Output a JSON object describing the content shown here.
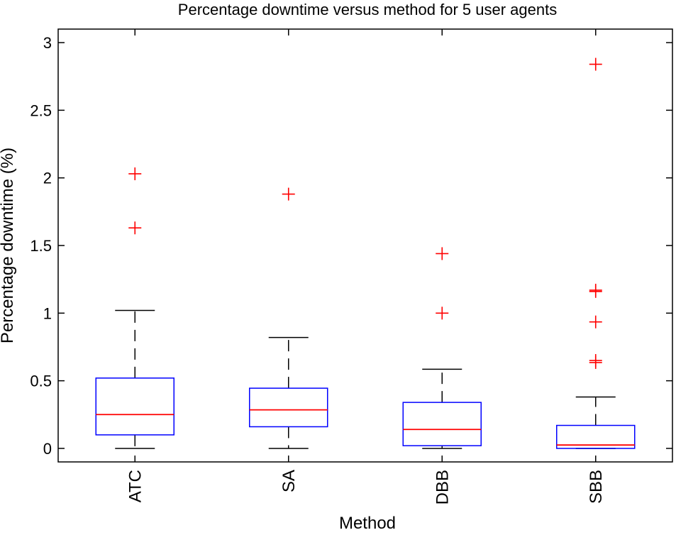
{
  "chart_data": {
    "type": "boxplot",
    "title": "Percentage downtime versus method for 5 user agents",
    "xlabel": "Method",
    "ylabel": "Percentage downtime (%)",
    "ylim": [
      -0.1,
      3.1
    ],
    "yticks": [
      0,
      0.5,
      1,
      1.5,
      2,
      2.5,
      3
    ],
    "ytick_labels": [
      "0",
      "0.5",
      "1",
      "1.5",
      "2",
      "2.5",
      "3"
    ],
    "grid": false,
    "categories": [
      "ATC",
      "SA",
      "DBB",
      "SBB"
    ],
    "boxes": [
      {
        "name": "ATC",
        "whisker_low": 0.0,
        "q1": 0.1,
        "median": 0.25,
        "q3": 0.52,
        "whisker_high": 1.02,
        "outliers": [
          1.63,
          2.03
        ]
      },
      {
        "name": "SA",
        "whisker_low": 0.0,
        "q1": 0.16,
        "median": 0.285,
        "q3": 0.445,
        "whisker_high": 0.82,
        "outliers": [
          1.88
        ]
      },
      {
        "name": "DBB",
        "whisker_low": 0.0,
        "q1": 0.02,
        "median": 0.14,
        "q3": 0.34,
        "whisker_high": 0.585,
        "outliers": [
          1.0,
          1.44
        ]
      },
      {
        "name": "SBB",
        "whisker_low": 0.0,
        "q1": 0.0,
        "median": 0.025,
        "q3": 0.17,
        "whisker_high": 0.38,
        "outliers": [
          0.635,
          0.65,
          0.935,
          1.16,
          1.17,
          2.84
        ]
      }
    ],
    "colors": {
      "box": "#0000ff",
      "median": "#ff0000",
      "outlier": "#ff0000",
      "whisker": "#000000",
      "axes": "#000000"
    }
  }
}
